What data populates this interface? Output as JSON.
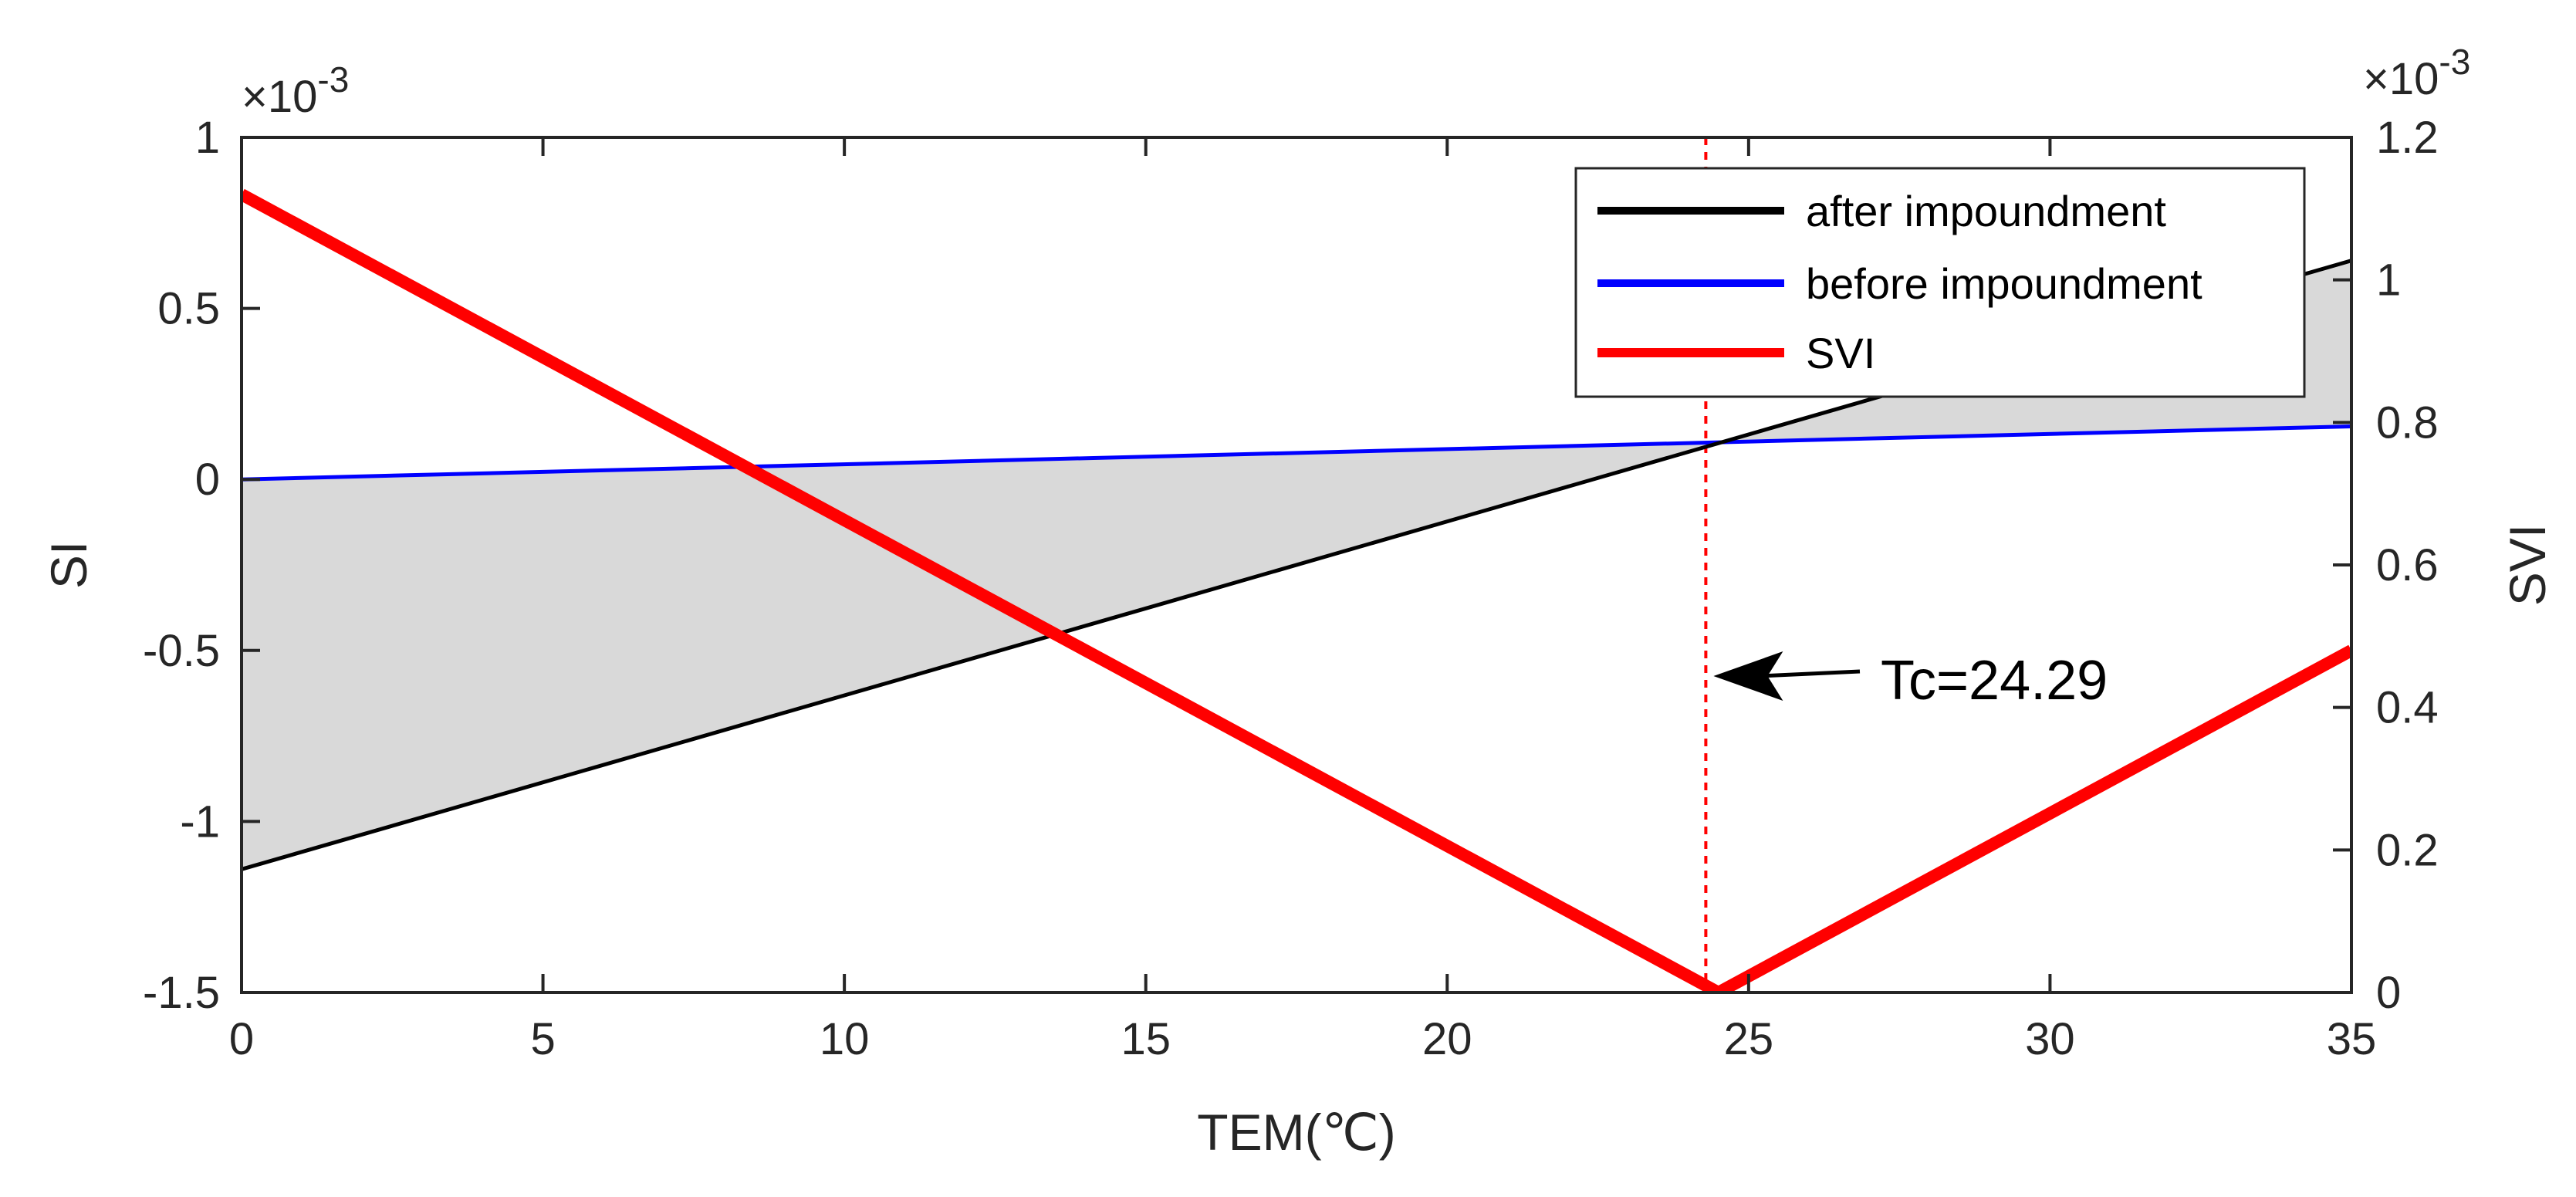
{
  "chart_data": {
    "type": "line",
    "xlabel": "TEM(℃)",
    "ylabel_left": "SI",
    "ylabel_right": "SVI",
    "xlim": [
      0,
      35
    ],
    "ylim_left": [
      -1.5,
      1
    ],
    "ylim_right": [
      0,
      1.2
    ],
    "xticks": [
      0,
      5,
      10,
      15,
      20,
      25,
      30,
      35
    ],
    "xtick_labels": [
      "0",
      "5",
      "10",
      "15",
      "20",
      "25",
      "30",
      "35"
    ],
    "yticks_left": [
      1,
      0.5,
      0,
      -0.5,
      -1,
      -1.5
    ],
    "ytick_labels_left": [
      "1",
      "0.5",
      "0",
      "-0.5",
      "-1",
      "-1.5"
    ],
    "yticks_right": [
      1.2,
      1,
      0.8,
      0.6,
      0.4,
      0.2,
      0
    ],
    "ytick_labels_right": [
      "1.2",
      "1",
      "0.8",
      "0.6",
      "0.4",
      "0.2",
      "0"
    ],
    "exponent_left": "×10",
    "exponent_right": "×10",
    "exponent_power": "-3",
    "series": [
      {
        "name": "after impoundment",
        "axis": "left",
        "color": "#000000",
        "x": [
          0,
          35
        ],
        "y": [
          -1.14,
          0.64
        ]
      },
      {
        "name": "before impoundment",
        "axis": "left",
        "color": "#0000ff",
        "x": [
          0,
          35
        ],
        "y": [
          0.0,
          0.155
        ]
      },
      {
        "name": "SVI",
        "axis": "right",
        "color": "#ff0000",
        "x": [
          0,
          24.5,
          35
        ],
        "y": [
          1.12,
          0.0,
          0.48
        ]
      }
    ],
    "shaded_region": {
      "between": [
        "after impoundment",
        "before impoundment"
      ],
      "color": "#d9d9d9"
    },
    "vline": {
      "x": 24.29,
      "color": "#ff0000",
      "style": "dashed"
    },
    "annotation": {
      "text": "Tc=24.29",
      "arrow_to_x": 24.29
    },
    "legend_position": "top-right",
    "grid": false
  }
}
